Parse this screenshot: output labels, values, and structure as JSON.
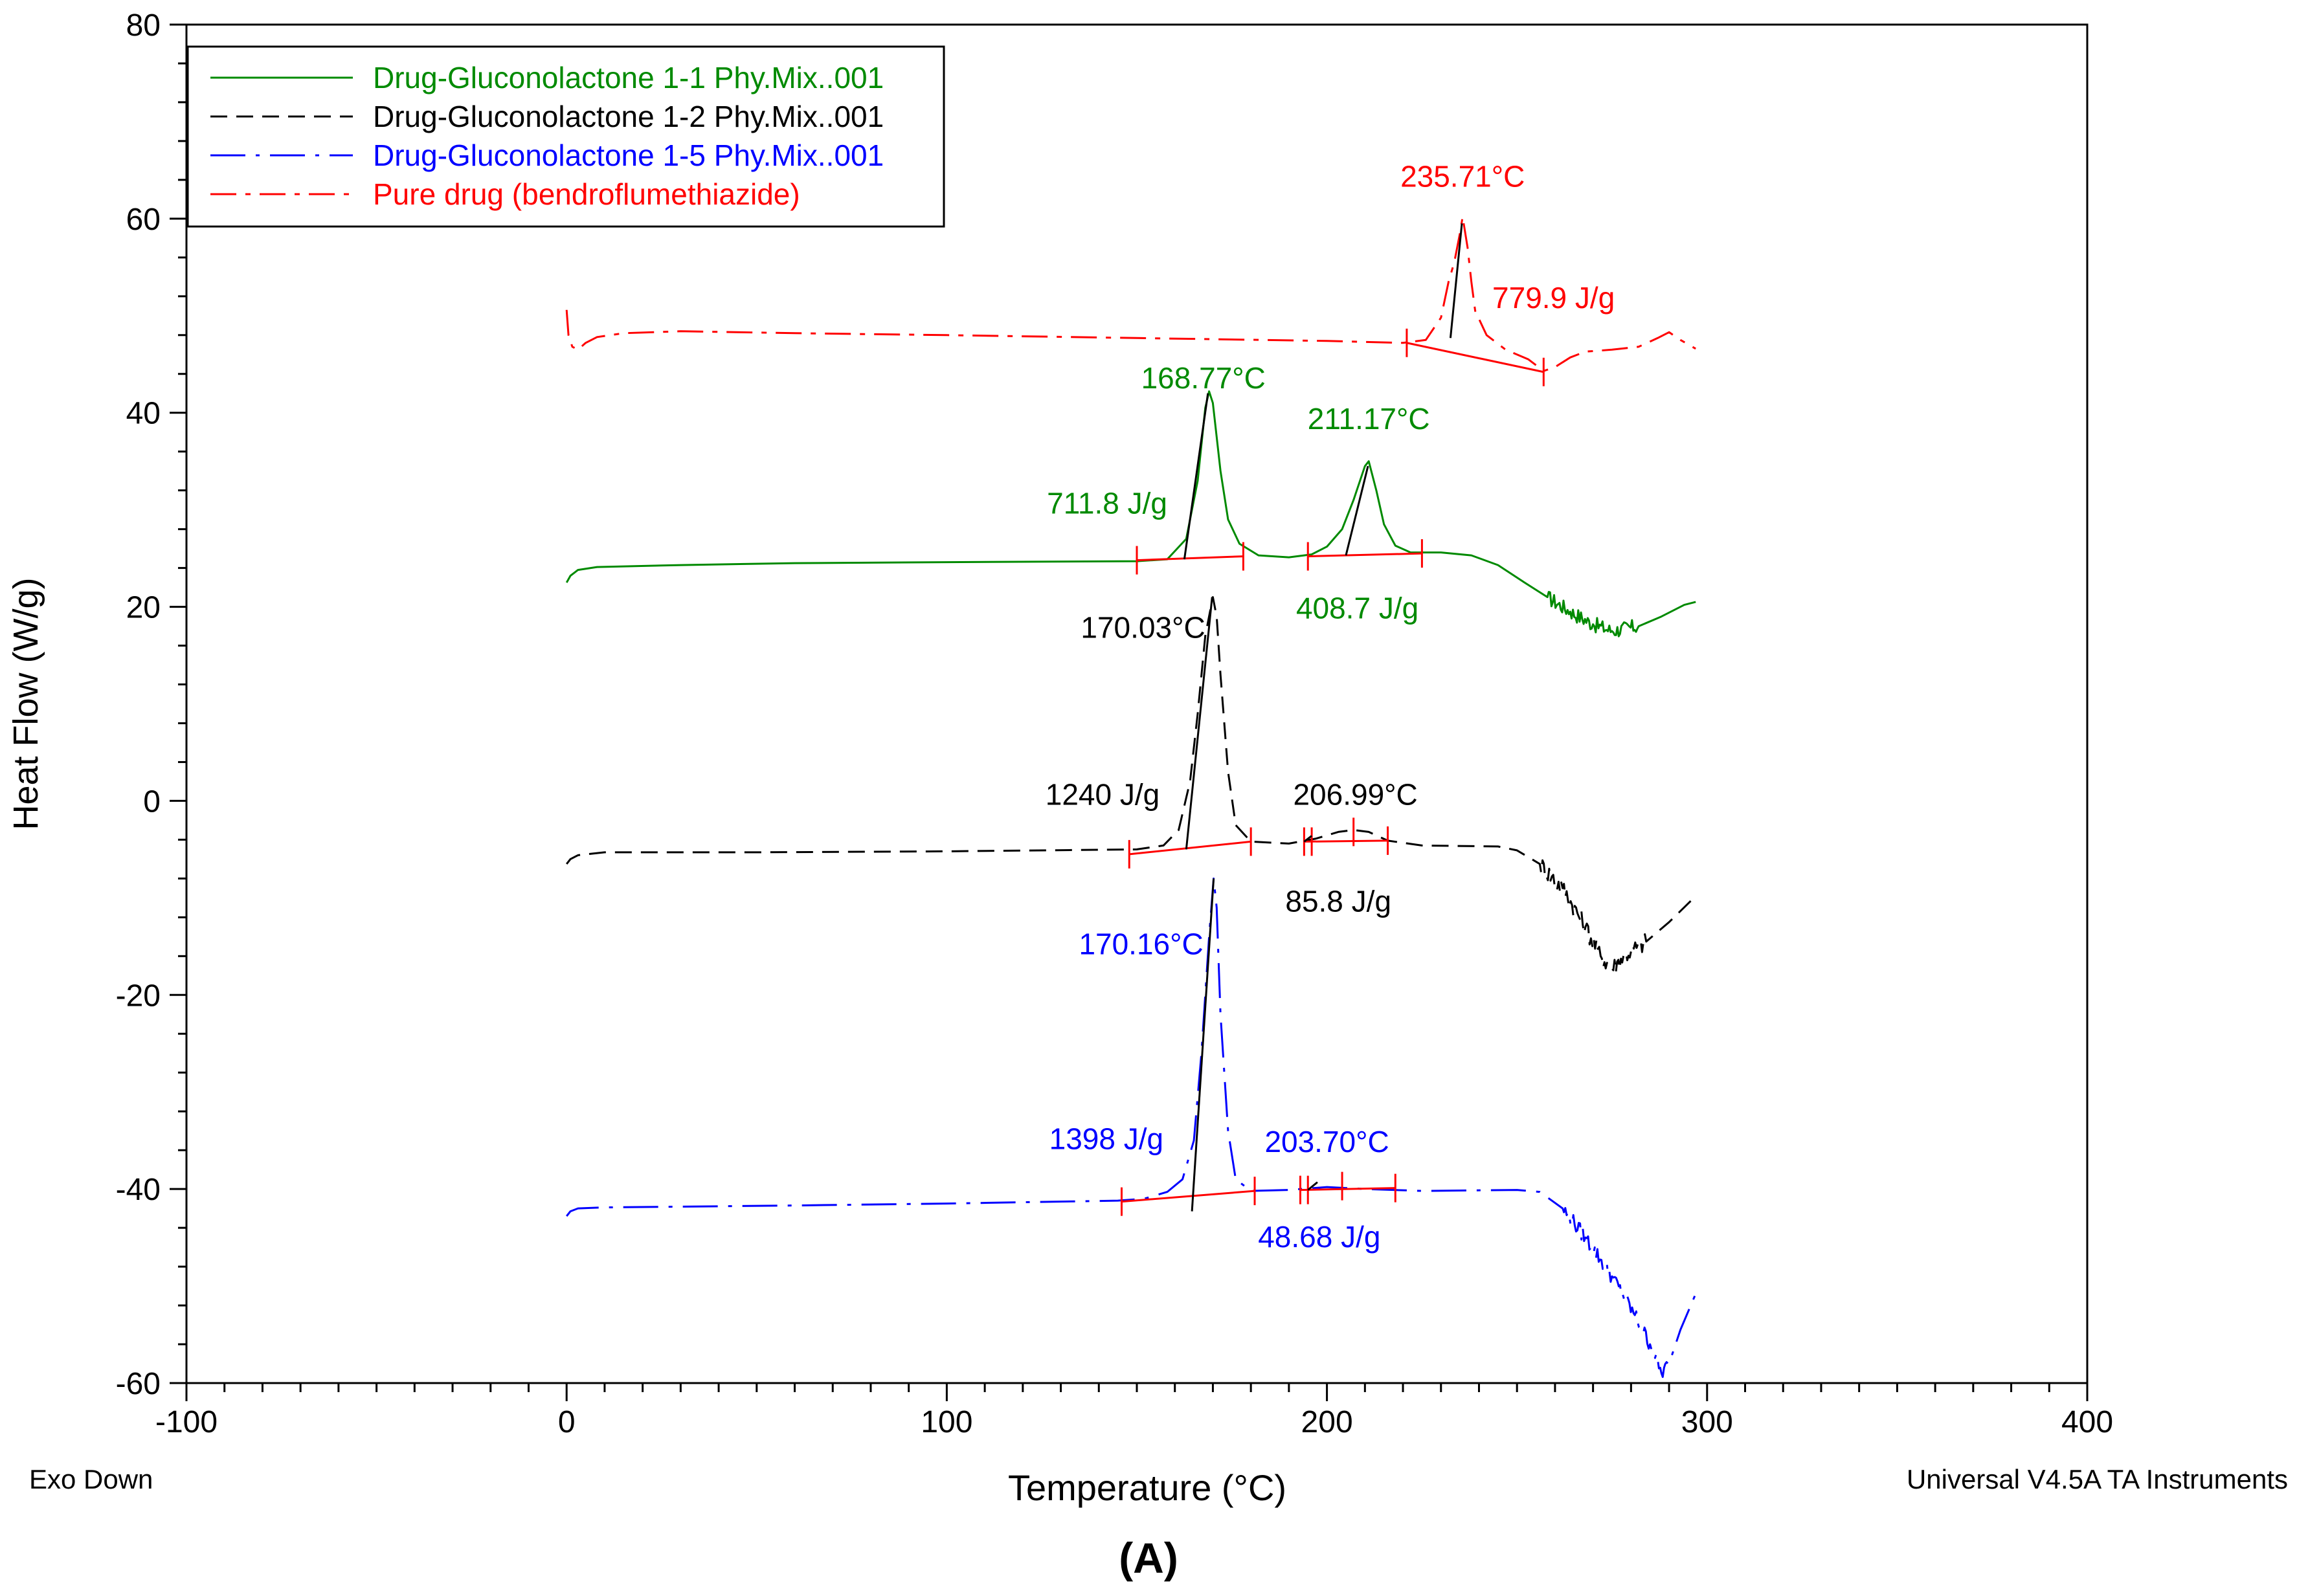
{
  "chart_data": {
    "type": "line",
    "xlabel": "Temperature (°C)",
    "ylabel": "Heat Flow (W/g)",
    "xlim": [
      -100,
      400
    ],
    "ylim": [
      -60,
      80
    ],
    "x_ticks": [
      -100,
      0,
      100,
      200,
      300,
      400
    ],
    "y_ticks": [
      -60,
      -40,
      -20,
      0,
      20,
      40,
      60,
      80
    ],
    "x_minor_step": 10,
    "y_minor_step": 4,
    "footer_left": "Exo Down",
    "footer_right": "Universal V4.5A TA Instruments",
    "panel_label": "(A)",
    "legend_position": "top-left",
    "colors": {
      "green": "#008a00",
      "black": "#000000",
      "blue": "#0000ff",
      "red": "#ff0000"
    },
    "series": [
      {
        "name": "Drug-Gluconolactone 1-1 Phy.Mix..001",
        "color": "#008a00",
        "dash": "solid",
        "points": [
          [
            0,
            22.5
          ],
          [
            1,
            23.2
          ],
          [
            3,
            23.8
          ],
          [
            8,
            24.1
          ],
          [
            30,
            24.3
          ],
          [
            60,
            24.5
          ],
          [
            100,
            24.6
          ],
          [
            150,
            24.7
          ],
          [
            158,
            24.9
          ],
          [
            163,
            27
          ],
          [
            166,
            33
          ],
          [
            168,
            40.5
          ],
          [
            169,
            42.2
          ],
          [
            170,
            41
          ],
          [
            172,
            34
          ],
          [
            174,
            29
          ],
          [
            177,
            26.5
          ],
          [
            182,
            25.3
          ],
          [
            190,
            25.1
          ],
          [
            196,
            25.4
          ],
          [
            200,
            26.2
          ],
          [
            204,
            28
          ],
          [
            207,
            31
          ],
          [
            210,
            34.5
          ],
          [
            211,
            35
          ],
          [
            213,
            32
          ],
          [
            215,
            28.5
          ],
          [
            218,
            26.3
          ],
          [
            222,
            25.6
          ],
          [
            230,
            25.6
          ],
          [
            238,
            25.3
          ],
          [
            245,
            24.3
          ],
          [
            252,
            22.5
          ],
          [
            258,
            21
          ],
          [
            264,
            19.5
          ],
          [
            270,
            18.2
          ],
          [
            275,
            17.5
          ],
          [
            282,
            18
          ],
          [
            288,
            19
          ],
          [
            294,
            20.2
          ],
          [
            297,
            20.5
          ]
        ],
        "noise": [
          [
            255,
            282,
            1.6
          ]
        ]
      },
      {
        "name": "Drug-Gluconolactone 1-2 Phy.Mix..001",
        "color": "#000000",
        "dash": "dashed",
        "points": [
          [
            0,
            -6.5
          ],
          [
            1,
            -6
          ],
          [
            3,
            -5.6
          ],
          [
            10,
            -5.3
          ],
          [
            50,
            -5.3
          ],
          [
            100,
            -5.2
          ],
          [
            150,
            -5
          ],
          [
            157,
            -4.6
          ],
          [
            161,
            -3
          ],
          [
            164,
            2
          ],
          [
            166,
            9
          ],
          [
            168,
            17
          ],
          [
            170,
            21
          ],
          [
            171,
            19
          ],
          [
            172,
            13
          ],
          [
            174,
            3
          ],
          [
            176,
            -2.5
          ],
          [
            180,
            -4.2
          ],
          [
            190,
            -4.4
          ],
          [
            197,
            -3.9
          ],
          [
            203,
            -3.2
          ],
          [
            207,
            -3.0
          ],
          [
            211,
            -3.2
          ],
          [
            216,
            -4.1
          ],
          [
            225,
            -4.6
          ],
          [
            245,
            -4.7
          ],
          [
            250,
            -5.1
          ],
          [
            256,
            -6.5
          ],
          [
            262,
            -9
          ],
          [
            268,
            -13
          ],
          [
            272,
            -16
          ],
          [
            275,
            -17.3
          ],
          [
            278,
            -16
          ],
          [
            280,
            -15.5
          ],
          [
            284,
            -14.5
          ],
          [
            290,
            -12.5
          ],
          [
            296,
            -10.2
          ]
        ],
        "noise": [
          [
            256,
            284,
            2.0
          ]
        ]
      },
      {
        "name": "Drug-Gluconolactone 1-5 Phy.Mix..001",
        "color": "#0000ff",
        "dash": "dashdot",
        "points": [
          [
            0,
            -42.8
          ],
          [
            1,
            -42.3
          ],
          [
            3,
            -42
          ],
          [
            10,
            -41.9
          ],
          [
            60,
            -41.7
          ],
          [
            100,
            -41.5
          ],
          [
            145,
            -41.2
          ],
          [
            152,
            -41
          ],
          [
            158,
            -40.3
          ],
          [
            162,
            -39
          ],
          [
            165,
            -35
          ],
          [
            167,
            -26
          ],
          [
            169,
            -14
          ],
          [
            170.2,
            -8
          ],
          [
            171,
            -11
          ],
          [
            172,
            -22
          ],
          [
            174,
            -34
          ],
          [
            176,
            -39
          ],
          [
            180,
            -40.2
          ],
          [
            190,
            -40.1
          ],
          [
            200,
            -39.8
          ],
          [
            210,
            -40
          ],
          [
            225,
            -40.2
          ],
          [
            250,
            -40.1
          ],
          [
            256,
            -40.3
          ],
          [
            262,
            -42
          ],
          [
            268,
            -45
          ],
          [
            275,
            -49
          ],
          [
            281,
            -53
          ],
          [
            285,
            -56
          ],
          [
            288,
            -59
          ],
          [
            290,
            -58
          ],
          [
            293,
            -54.5
          ],
          [
            297,
            -50.8
          ]
        ],
        "noise": [
          [
            257,
            290,
            1.6
          ]
        ]
      },
      {
        "name": "Pure drug (bendroflumethiazide)",
        "color": "#ff0000",
        "dash": "dashdot2",
        "points": [
          [
            0,
            50.6
          ],
          [
            0.5,
            48
          ],
          [
            1.5,
            46.8
          ],
          [
            3,
            46.5
          ],
          [
            5,
            47.2
          ],
          [
            8,
            47.8
          ],
          [
            15,
            48.2
          ],
          [
            30,
            48.4
          ],
          [
            60,
            48.2
          ],
          [
            100,
            48
          ],
          [
            150,
            47.7
          ],
          [
            200,
            47.4
          ],
          [
            220,
            47.2
          ],
          [
            226,
            47.5
          ],
          [
            230,
            49.8
          ],
          [
            232,
            53.5
          ],
          [
            233.5,
            55.5
          ],
          [
            235,
            58.5
          ],
          [
            235.7,
            60.2
          ],
          [
            237,
            57
          ],
          [
            238,
            53.5
          ],
          [
            239,
            50.5
          ],
          [
            242,
            48
          ],
          [
            247,
            46.5
          ],
          [
            253,
            45.5
          ],
          [
            257,
            44.3
          ],
          [
            260,
            44.7
          ],
          [
            264,
            45.7
          ],
          [
            268,
            46.3
          ],
          [
            275,
            46.5
          ],
          [
            282,
            46.8
          ],
          [
            287,
            47.7
          ],
          [
            290,
            48.3
          ],
          [
            293,
            47.5
          ],
          [
            297,
            46.6
          ]
        ],
        "noise": []
      }
    ],
    "peak_markers": [
      {
        "color": "#ff0000",
        "x1": 221,
        "y1": 47.2,
        "x2": 257,
        "y2": 44.2,
        "ticks": [
          [
            221,
            47.2
          ],
          [
            257,
            44.2
          ]
        ],
        "drop": [
          232.5,
          47.7,
          235.5,
          59.5
        ]
      },
      {
        "color": "#008a00",
        "x1": 150,
        "y1": 24.8,
        "x2": 178,
        "y2": 25.2,
        "ticks": [
          [
            150,
            24.8
          ],
          [
            178,
            25.2
          ]
        ],
        "drop": [
          162.5,
          24.9,
          168.7,
          42
        ]
      },
      {
        "color": "#008a00",
        "x1": 195,
        "y1": 25.2,
        "x2": 225,
        "y2": 25.5,
        "ticks": [
          [
            195,
            25.2
          ],
          [
            225,
            25.5
          ]
        ],
        "drop": [
          205,
          25.3,
          210.8,
          34.5
        ]
      },
      {
        "color": "#000000",
        "x1": 148,
        "y1": -5.5,
        "x2": 180,
        "y2": -4.2,
        "ticks": [
          [
            148,
            -5.5
          ],
          [
            180,
            -4.2
          ]
        ],
        "drop": [
          163,
          -5,
          169.8,
          21
        ]
      },
      {
        "color": "#000000",
        "x1": 194,
        "y1": -4.2,
        "x2": 216,
        "y2": -4.1,
        "ticks": [
          [
            194,
            -4.2
          ],
          [
            196,
            -4.2
          ],
          [
            207,
            -3.2
          ],
          [
            216,
            -4.1
          ]
        ],
        "drop": [
          194,
          -4.2,
          196,
          -3.6
        ]
      },
      {
        "color": "#0000ff",
        "x1": 146,
        "y1": -41.3,
        "x2": 181,
        "y2": -40.2,
        "ticks": [
          [
            146,
            -41.3
          ],
          [
            181,
            -40.2
          ]
        ],
        "drop": [
          164.5,
          -42.3,
          170.2,
          -8
        ]
      },
      {
        "color": "#0000ff",
        "x1": 193,
        "y1": -40.1,
        "x2": 218,
        "y2": -39.9,
        "ticks": [
          [
            193,
            -40.1
          ],
          [
            195,
            -40.1
          ],
          [
            204,
            -39.7
          ],
          [
            218,
            -39.9
          ]
        ],
        "drop": [
          195,
          -40.1,
          197.5,
          -39.3
        ]
      }
    ],
    "annotations": [
      {
        "text": "235.71°C",
        "x": 235.7,
        "y": 63.3,
        "anchor": "middle",
        "color": "#ff0000"
      },
      {
        "text": "779.9 J/g",
        "x": 243.5,
        "y": 50.8,
        "anchor": "start",
        "color": "#ff0000"
      },
      {
        "text": "168.77°C",
        "x": 167.5,
        "y": 42.5,
        "anchor": "middle",
        "color": "#008a00"
      },
      {
        "text": "211.17°C",
        "x": 211,
        "y": 38.3,
        "anchor": "middle",
        "color": "#008a00"
      },
      {
        "text": "711.8 J/g",
        "x": 158,
        "y": 29.6,
        "anchor": "end",
        "color": "#008a00"
      },
      {
        "text": "408.7 J/g",
        "x": 208,
        "y": 18.8,
        "anchor": "middle",
        "color": "#008a00"
      },
      {
        "text": "170.03°C",
        "x": 168,
        "y": 16.8,
        "anchor": "end",
        "color": "#000000"
      },
      {
        "text": "1240 J/g",
        "x": 156,
        "y": -0.4,
        "anchor": "end",
        "color": "#000000"
      },
      {
        "text": "206.99°C",
        "x": 207.5,
        "y": -0.4,
        "anchor": "middle",
        "color": "#000000"
      },
      {
        "text": "85.8 J/g",
        "x": 203,
        "y": -11.4,
        "anchor": "middle",
        "color": "#000000"
      },
      {
        "text": "170.16°C",
        "x": 167.5,
        "y": -15.8,
        "anchor": "end",
        "color": "#0000ff"
      },
      {
        "text": "1398 J/g",
        "x": 157,
        "y": -35.9,
        "anchor": "end",
        "color": "#0000ff"
      },
      {
        "text": "203.70°C",
        "x": 200,
        "y": -36.2,
        "anchor": "middle",
        "color": "#0000ff"
      },
      {
        "text": "48.68 J/g",
        "x": 198,
        "y": -46,
        "anchor": "middle",
        "color": "#0000ff"
      }
    ]
  }
}
